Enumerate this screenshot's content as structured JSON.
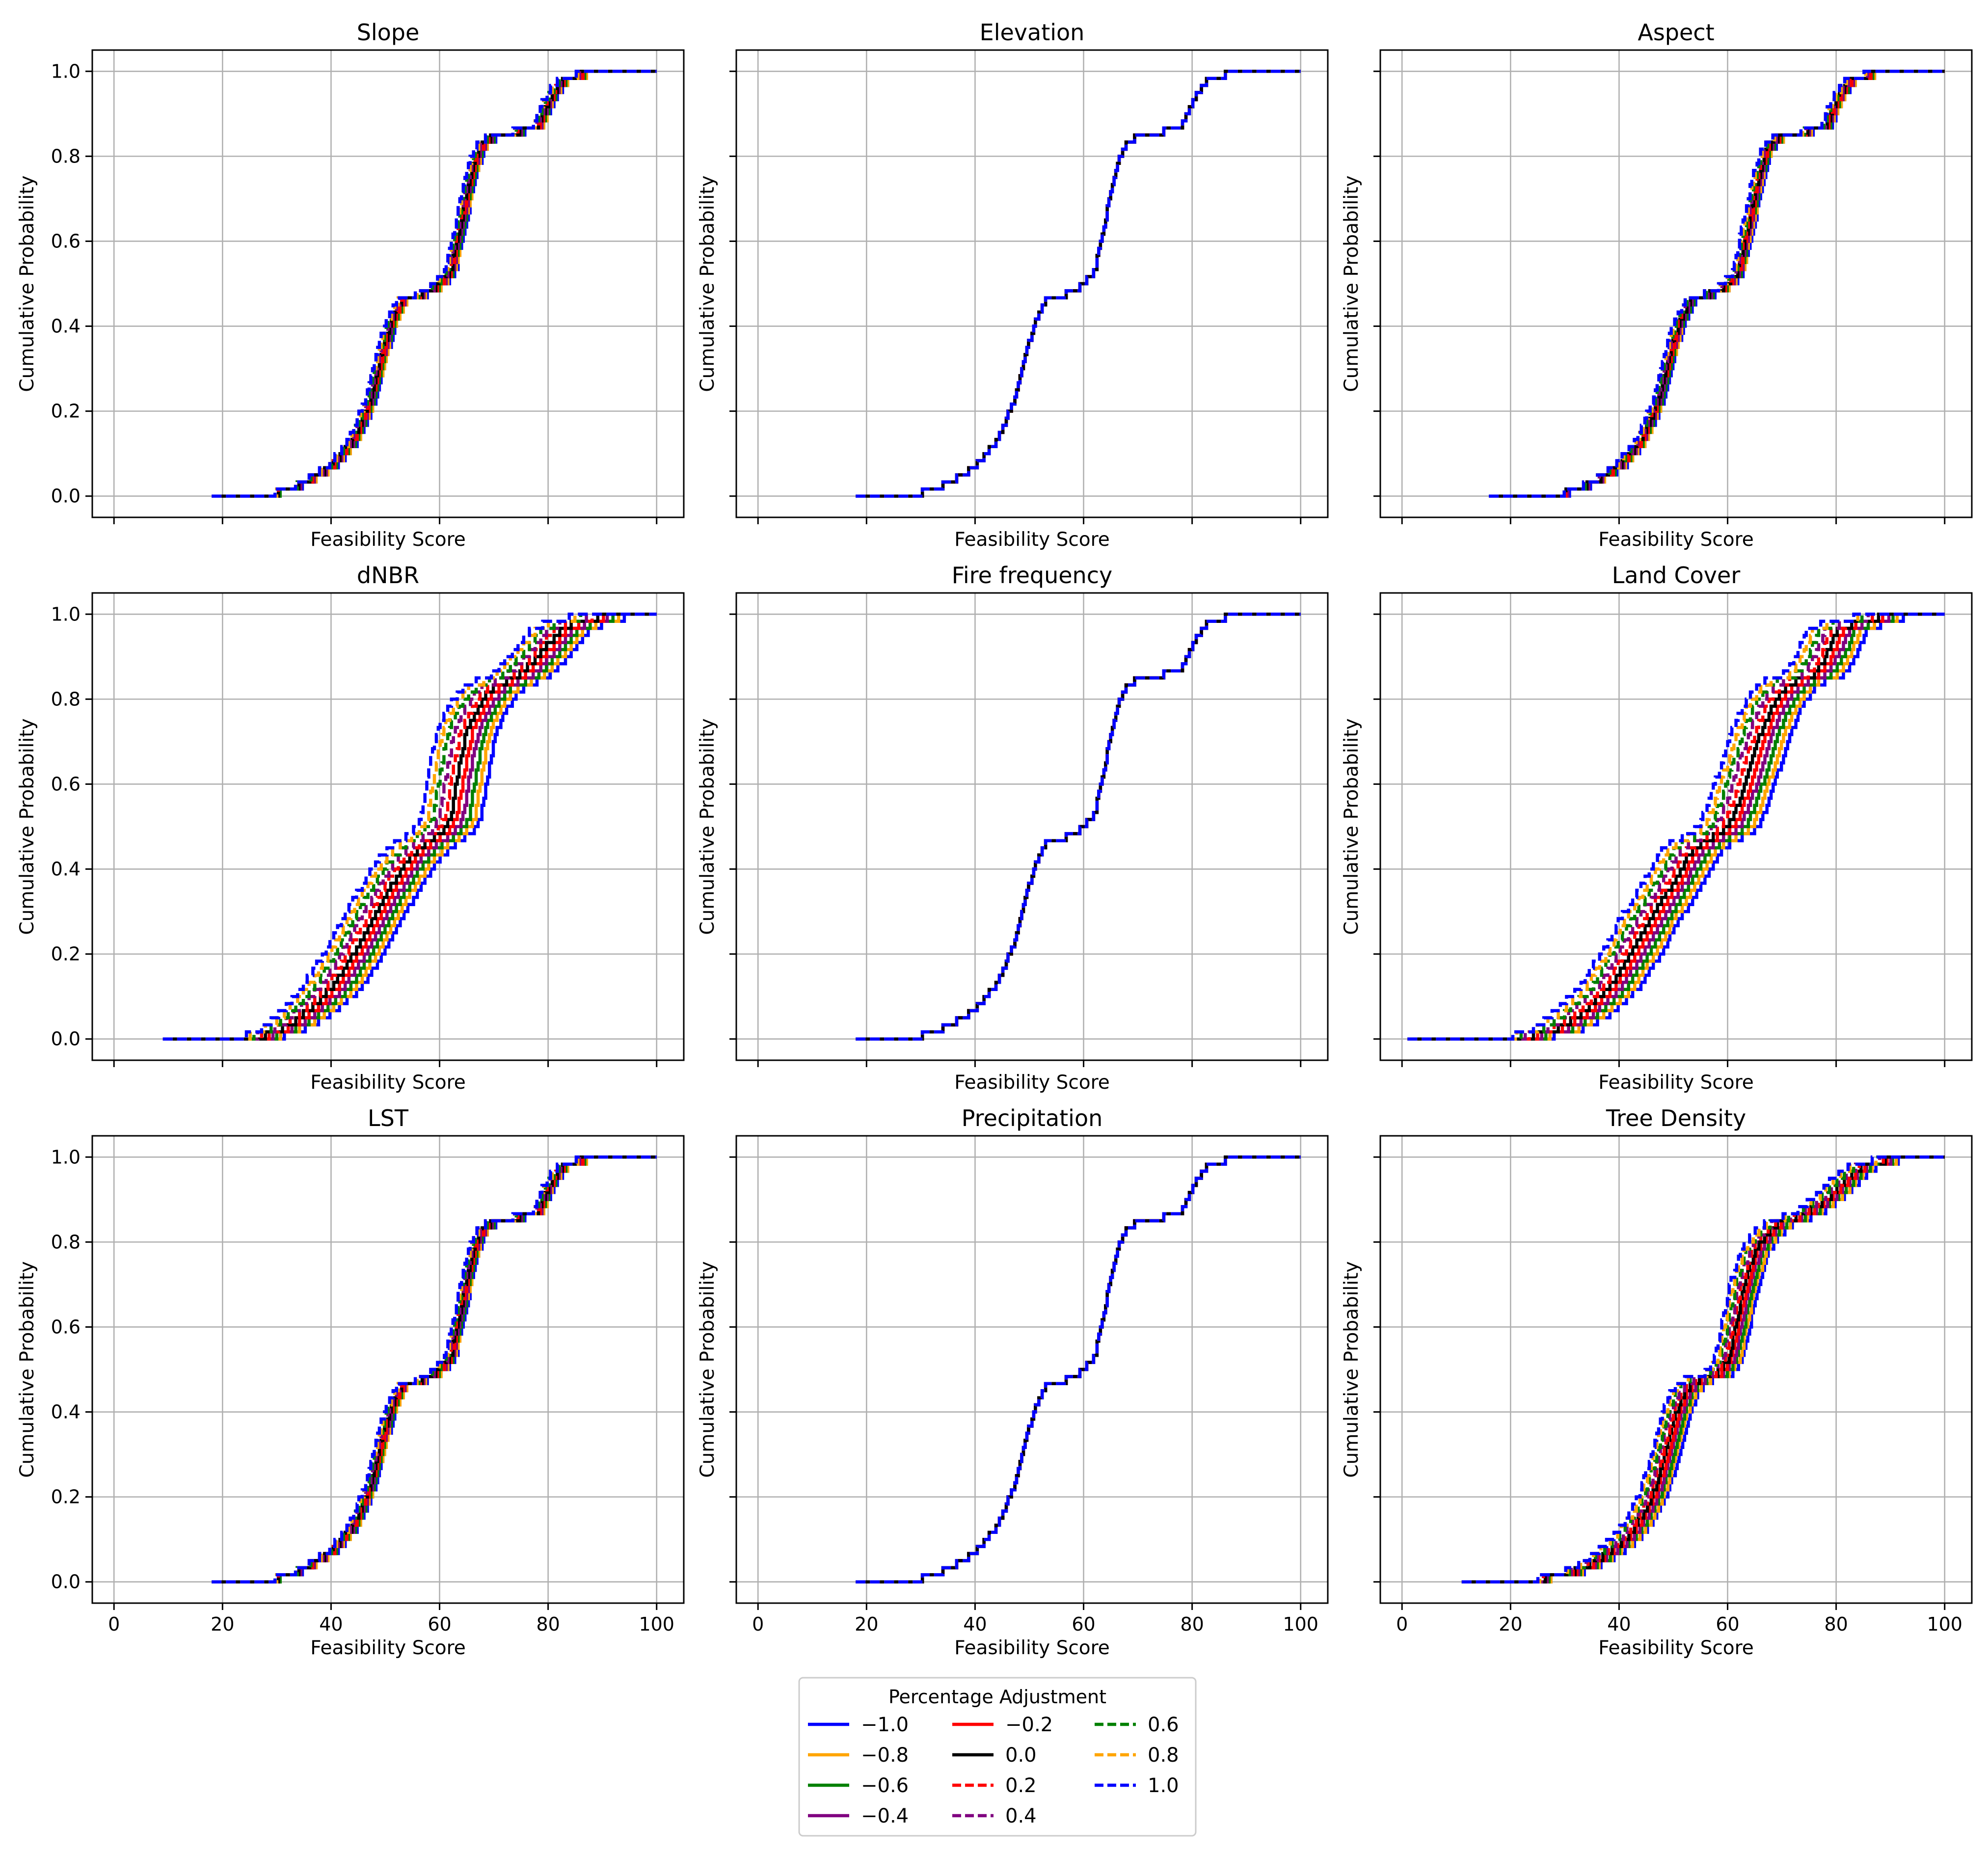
{
  "figure": {
    "x_tick_labels": [
      "0",
      "20",
      "40",
      "60",
      "80",
      "100"
    ],
    "y_tick_labels": [
      "0.0",
      "0.2",
      "0.4",
      "0.6",
      "0.8",
      "1.0"
    ],
    "legend": {
      "title": "Percentage Adjustment",
      "entries": [
        {
          "label": "−1.0",
          "color": "#0000ff",
          "dash": "solid"
        },
        {
          "label": "−0.8",
          "color": "#ffa500",
          "dash": "solid"
        },
        {
          "label": "−0.6",
          "color": "#008000",
          "dash": "solid"
        },
        {
          "label": "−0.4",
          "color": "#800080",
          "dash": "solid"
        },
        {
          "label": "−0.2",
          "color": "#ff0000",
          "dash": "solid"
        },
        {
          "label": "0.0",
          "color": "#000000",
          "dash": "solid"
        },
        {
          "label": "0.2",
          "color": "#ff0000",
          "dash": "dashed"
        },
        {
          "label": "0.4",
          "color": "#800080",
          "dash": "dashed"
        },
        {
          "label": "0.6",
          "color": "#008000",
          "dash": "dashed"
        },
        {
          "label": "0.8",
          "color": "#ffa500",
          "dash": "dashed"
        },
        {
          "label": "1.0",
          "color": "#0000ff",
          "dash": "dashed"
        }
      ]
    }
  },
  "chart_data": [
    {
      "type": "line",
      "title": "Slope",
      "xlabel": "Feasibility Score",
      "ylabel": "Cumulative Probability",
      "xlim": [
        -4,
        105
      ],
      "ylim": [
        -0.05,
        1.05
      ],
      "spread": "small",
      "base_curve": {
        "x": [
          18,
          25,
          30,
          35,
          40,
          44,
          47,
          49,
          51,
          53,
          55,
          58,
          60,
          62,
          63,
          64,
          65,
          66,
          67,
          68,
          70,
          72,
          75,
          78,
          80,
          82,
          84,
          90,
          100
        ],
        "y": [
          0.0,
          0.003,
          0.008,
          0.03,
          0.07,
          0.13,
          0.22,
          0.32,
          0.41,
          0.46,
          0.47,
          0.48,
          0.5,
          0.53,
          0.6,
          0.65,
          0.72,
          0.77,
          0.81,
          0.83,
          0.85,
          0.85,
          0.86,
          0.87,
          0.93,
          0.97,
          0.99,
          0.995,
          1.0
        ]
      }
    },
    {
      "type": "line",
      "title": "Elevation",
      "xlabel": "Feasibility Score",
      "ylabel": "Cumulative Probability",
      "xlim": [
        -4,
        105
      ],
      "ylim": [
        -0.05,
        1.05
      ],
      "spread": "none",
      "base_curve": {
        "x": [
          18,
          25,
          30,
          35,
          40,
          44,
          47,
          49,
          51,
          53,
          55,
          58,
          60,
          62,
          63,
          64,
          65,
          66,
          67,
          68,
          70,
          72,
          75,
          78,
          80,
          82,
          84,
          90,
          100
        ],
        "y": [
          0.0,
          0.003,
          0.008,
          0.03,
          0.07,
          0.13,
          0.22,
          0.32,
          0.41,
          0.46,
          0.47,
          0.48,
          0.5,
          0.53,
          0.6,
          0.65,
          0.72,
          0.77,
          0.81,
          0.83,
          0.85,
          0.85,
          0.86,
          0.87,
          0.93,
          0.97,
          0.99,
          0.995,
          1.0
        ]
      }
    },
    {
      "type": "line",
      "title": "Aspect",
      "xlabel": "Feasibility Score",
      "ylabel": "Cumulative Probability",
      "xlim": [
        -4,
        105
      ],
      "ylim": [
        -0.05,
        1.05
      ],
      "spread": "small",
      "base_curve": {
        "x": [
          16,
          25,
          30,
          35,
          40,
          44,
          47,
          49,
          51,
          53,
          55,
          58,
          60,
          62,
          63,
          64,
          65,
          66,
          67,
          68,
          70,
          72,
          75,
          78,
          80,
          82,
          84,
          90,
          100
        ],
        "y": [
          0.0,
          0.003,
          0.008,
          0.03,
          0.07,
          0.13,
          0.22,
          0.32,
          0.41,
          0.46,
          0.47,
          0.48,
          0.5,
          0.53,
          0.6,
          0.65,
          0.72,
          0.77,
          0.81,
          0.83,
          0.85,
          0.85,
          0.86,
          0.87,
          0.93,
          0.97,
          0.99,
          0.995,
          1.0
        ]
      }
    },
    {
      "type": "line",
      "title": "dNBR",
      "xlabel": "Feasibility Score",
      "ylabel": "Cumulative Probability",
      "xlim": [
        -4,
        105
      ],
      "ylim": [
        -0.05,
        1.05
      ],
      "spread": "wide",
      "base_curve": {
        "x": [
          9,
          20,
          27,
          32,
          36,
          40,
          44,
          47,
          50,
          54,
          58,
          60,
          62,
          63,
          64,
          65,
          67,
          69,
          72,
          75,
          78,
          80,
          82,
          85,
          90,
          100
        ],
        "y": [
          0.0,
          0.0,
          0.005,
          0.03,
          0.07,
          0.12,
          0.2,
          0.27,
          0.34,
          0.42,
          0.47,
          0.48,
          0.52,
          0.6,
          0.67,
          0.73,
          0.78,
          0.82,
          0.84,
          0.86,
          0.9,
          0.93,
          0.96,
          0.98,
          0.995,
          1.0
        ]
      }
    },
    {
      "type": "line",
      "title": "Fire frequency",
      "xlabel": "Feasibility Score",
      "ylabel": "Cumulative Probability",
      "xlim": [
        -4,
        105
      ],
      "ylim": [
        -0.05,
        1.05
      ],
      "spread": "none",
      "base_curve": {
        "x": [
          18,
          25,
          30,
          35,
          40,
          44,
          47,
          49,
          51,
          53,
          55,
          58,
          60,
          62,
          63,
          64,
          65,
          66,
          67,
          68,
          70,
          72,
          75,
          78,
          80,
          82,
          84,
          90,
          100
        ],
        "y": [
          0.0,
          0.003,
          0.008,
          0.03,
          0.07,
          0.13,
          0.22,
          0.32,
          0.41,
          0.46,
          0.47,
          0.48,
          0.5,
          0.53,
          0.6,
          0.65,
          0.72,
          0.77,
          0.81,
          0.83,
          0.85,
          0.85,
          0.86,
          0.87,
          0.93,
          0.97,
          0.99,
          0.995,
          1.0
        ]
      }
    },
    {
      "type": "line",
      "title": "Land Cover",
      "xlabel": "Feasibility Score",
      "ylabel": "Cumulative Probability",
      "xlim": [
        -4,
        105
      ],
      "ylim": [
        -0.05,
        1.05
      ],
      "spread": "wide",
      "base_curve": {
        "x": [
          1,
          15,
          22,
          28,
          33,
          38,
          42,
          46,
          50,
          53,
          56,
          58,
          60,
          62,
          64,
          66,
          68,
          70,
          72,
          74,
          76,
          78,
          80,
          85,
          100
        ],
        "y": [
          0.0,
          0.0,
          0.003,
          0.02,
          0.06,
          0.12,
          0.2,
          0.29,
          0.37,
          0.44,
          0.47,
          0.48,
          0.5,
          0.56,
          0.64,
          0.72,
          0.78,
          0.82,
          0.84,
          0.85,
          0.86,
          0.9,
          0.96,
          0.99,
          1.0
        ]
      }
    },
    {
      "type": "line",
      "title": "LST",
      "xlabel": "Feasibility Score",
      "ylabel": "Cumulative Probability",
      "xlim": [
        -4,
        105
      ],
      "ylim": [
        -0.05,
        1.05
      ],
      "spread": "small",
      "base_curve": {
        "x": [
          18,
          25,
          30,
          35,
          40,
          44,
          47,
          49,
          51,
          53,
          55,
          58,
          60,
          62,
          63,
          64,
          65,
          66,
          67,
          68,
          70,
          72,
          75,
          78,
          80,
          82,
          84,
          90,
          100
        ],
        "y": [
          0.0,
          0.003,
          0.008,
          0.03,
          0.07,
          0.13,
          0.22,
          0.32,
          0.41,
          0.46,
          0.47,
          0.48,
          0.5,
          0.53,
          0.6,
          0.65,
          0.72,
          0.77,
          0.81,
          0.83,
          0.85,
          0.85,
          0.86,
          0.87,
          0.93,
          0.97,
          0.99,
          0.995,
          1.0
        ]
      }
    },
    {
      "type": "line",
      "title": "Precipitation",
      "xlabel": "Feasibility Score",
      "ylabel": "Cumulative Probability",
      "xlim": [
        -4,
        105
      ],
      "ylim": [
        -0.05,
        1.05
      ],
      "spread": "none",
      "base_curve": {
        "x": [
          18,
          25,
          30,
          35,
          40,
          44,
          47,
          49,
          51,
          53,
          55,
          58,
          60,
          62,
          63,
          64,
          65,
          66,
          67,
          68,
          70,
          72,
          75,
          78,
          80,
          82,
          84,
          90,
          100
        ],
        "y": [
          0.0,
          0.003,
          0.008,
          0.03,
          0.07,
          0.13,
          0.22,
          0.32,
          0.41,
          0.46,
          0.47,
          0.48,
          0.5,
          0.53,
          0.6,
          0.65,
          0.72,
          0.77,
          0.81,
          0.83,
          0.85,
          0.85,
          0.86,
          0.87,
          0.93,
          0.97,
          0.99,
          0.995,
          1.0
        ]
      }
    },
    {
      "type": "line",
      "title": "Tree Density",
      "xlabel": "Feasibility Score",
      "ylabel": "Cumulative Probability",
      "xlim": [
        -4,
        105
      ],
      "ylim": [
        -0.05,
        1.05
      ],
      "spread": "medium",
      "base_curve": {
        "x": [
          11,
          20,
          28,
          33,
          37,
          41,
          44,
          46,
          48,
          50,
          52,
          55,
          58,
          60,
          61,
          62,
          63,
          64,
          65,
          66,
          68,
          70,
          73,
          76,
          79,
          82,
          85,
          90,
          100
        ],
        "y": [
          0.0,
          0.003,
          0.01,
          0.03,
          0.06,
          0.1,
          0.15,
          0.2,
          0.28,
          0.38,
          0.45,
          0.48,
          0.49,
          0.52,
          0.58,
          0.64,
          0.7,
          0.74,
          0.78,
          0.8,
          0.83,
          0.85,
          0.86,
          0.88,
          0.91,
          0.95,
          0.98,
          0.995,
          1.0
        ]
      }
    }
  ]
}
